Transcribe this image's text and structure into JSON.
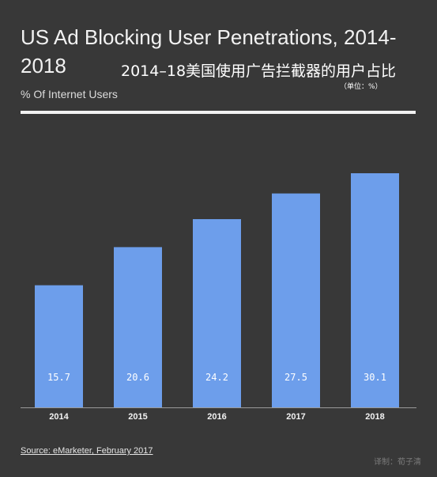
{
  "header": {
    "title": "US Ad Blocking User Penetrations, 2014-2018",
    "subtitle": "% Of Internet Users",
    "cn_title": "2014–18美国使用广告拦截器的用户占比",
    "cn_unit": "（单位：%）"
  },
  "footer": {
    "source": "Source: eMarketer, February 2017",
    "watermark": "译制：荀子清"
  },
  "colors": {
    "background": "#383838",
    "bar": "#6d9eeb",
    "text": "#f2f2f2"
  },
  "chart_data": {
    "type": "bar",
    "title": "US Ad Blocking User Penetrations, 2014-2018",
    "subtitle": "% Of Internet Users",
    "categories": [
      "2014",
      "2015",
      "2016",
      "2017",
      "2018"
    ],
    "values": [
      15.7,
      20.6,
      24.2,
      27.5,
      30.1
    ],
    "data_labels": [
      "15.7",
      "20.6",
      "24.2",
      "27.5",
      "30.1"
    ],
    "xlabel": "",
    "ylabel": "",
    "grid": false,
    "legend": "none"
  }
}
